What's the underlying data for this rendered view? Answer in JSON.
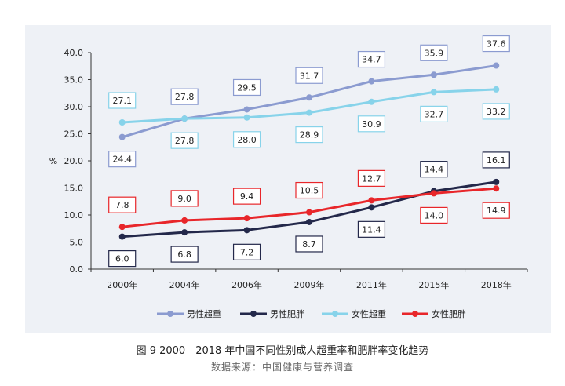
{
  "caption": {
    "figure": "图 9   2000—2018 年中国不同性别成人超重率和肥胖率变化趋势",
    "source": "数据来源：中国健康与营养调查"
  },
  "chart_data": {
    "type": "line",
    "ylabel": "%",
    "xlabel": "",
    "ylim": [
      0,
      40
    ],
    "yticks": [
      "0.0",
      "5.0",
      "10.0",
      "15.0",
      "20.0",
      "25.0",
      "30.0",
      "35.0",
      "40.0"
    ],
    "categories": [
      "2000年",
      "2004年",
      "2006年",
      "2009年",
      "2011年",
      "2015年",
      "2018年"
    ],
    "grid": false,
    "legend_position": "bottom",
    "series": [
      {
        "name": "男性超重",
        "color": "#8b9bd0",
        "values": [
          24.4,
          27.8,
          29.5,
          31.7,
          34.7,
          35.9,
          37.6
        ],
        "labels": [
          "24.4",
          "27.8",
          "29.5",
          "31.7",
          "34.7",
          "35.9",
          "37.6"
        ]
      },
      {
        "name": "男性肥胖",
        "color": "#23284a",
        "values": [
          6.0,
          6.8,
          7.2,
          8.7,
          11.4,
          14.4,
          16.1
        ],
        "labels": [
          "6.0",
          "6.8",
          "7.2",
          "8.7",
          "11.4",
          "14.4",
          "16.1"
        ]
      },
      {
        "name": "女性超重",
        "color": "#87d3ea",
        "values": [
          27.1,
          27.8,
          28.0,
          28.9,
          30.9,
          32.7,
          33.2
        ],
        "labels": [
          "27.1",
          "27.8",
          "28.0",
          "28.9",
          "30.9",
          "32.7",
          "33.2"
        ]
      },
      {
        "name": "女性肥胖",
        "color": "#e8262a",
        "values": [
          7.8,
          9.0,
          9.4,
          10.5,
          12.7,
          14.0,
          14.9
        ],
        "labels": [
          "7.8",
          "9.0",
          "9.4",
          "10.5",
          "12.7",
          "14.0",
          "14.9"
        ]
      }
    ]
  }
}
